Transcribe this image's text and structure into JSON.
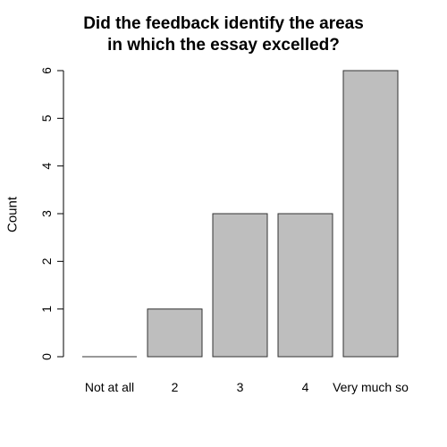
{
  "chart_data": {
    "type": "bar",
    "title_lines": [
      "Did the feedback identify the areas",
      "in which the essay excelled?"
    ],
    "xlabel": "",
    "ylabel": "Count",
    "categories": [
      "Not at all",
      "2",
      "3",
      "4",
      "Very much so"
    ],
    "values": [
      0,
      1,
      3,
      3,
      6
    ],
    "ylim": [
      0,
      6
    ],
    "yticks": [
      "0",
      "1",
      "2",
      "3",
      "4",
      "5",
      "6"
    ],
    "grid": false,
    "legend": "none",
    "bar_color": "#bebebe",
    "edge_color": "#333333"
  }
}
